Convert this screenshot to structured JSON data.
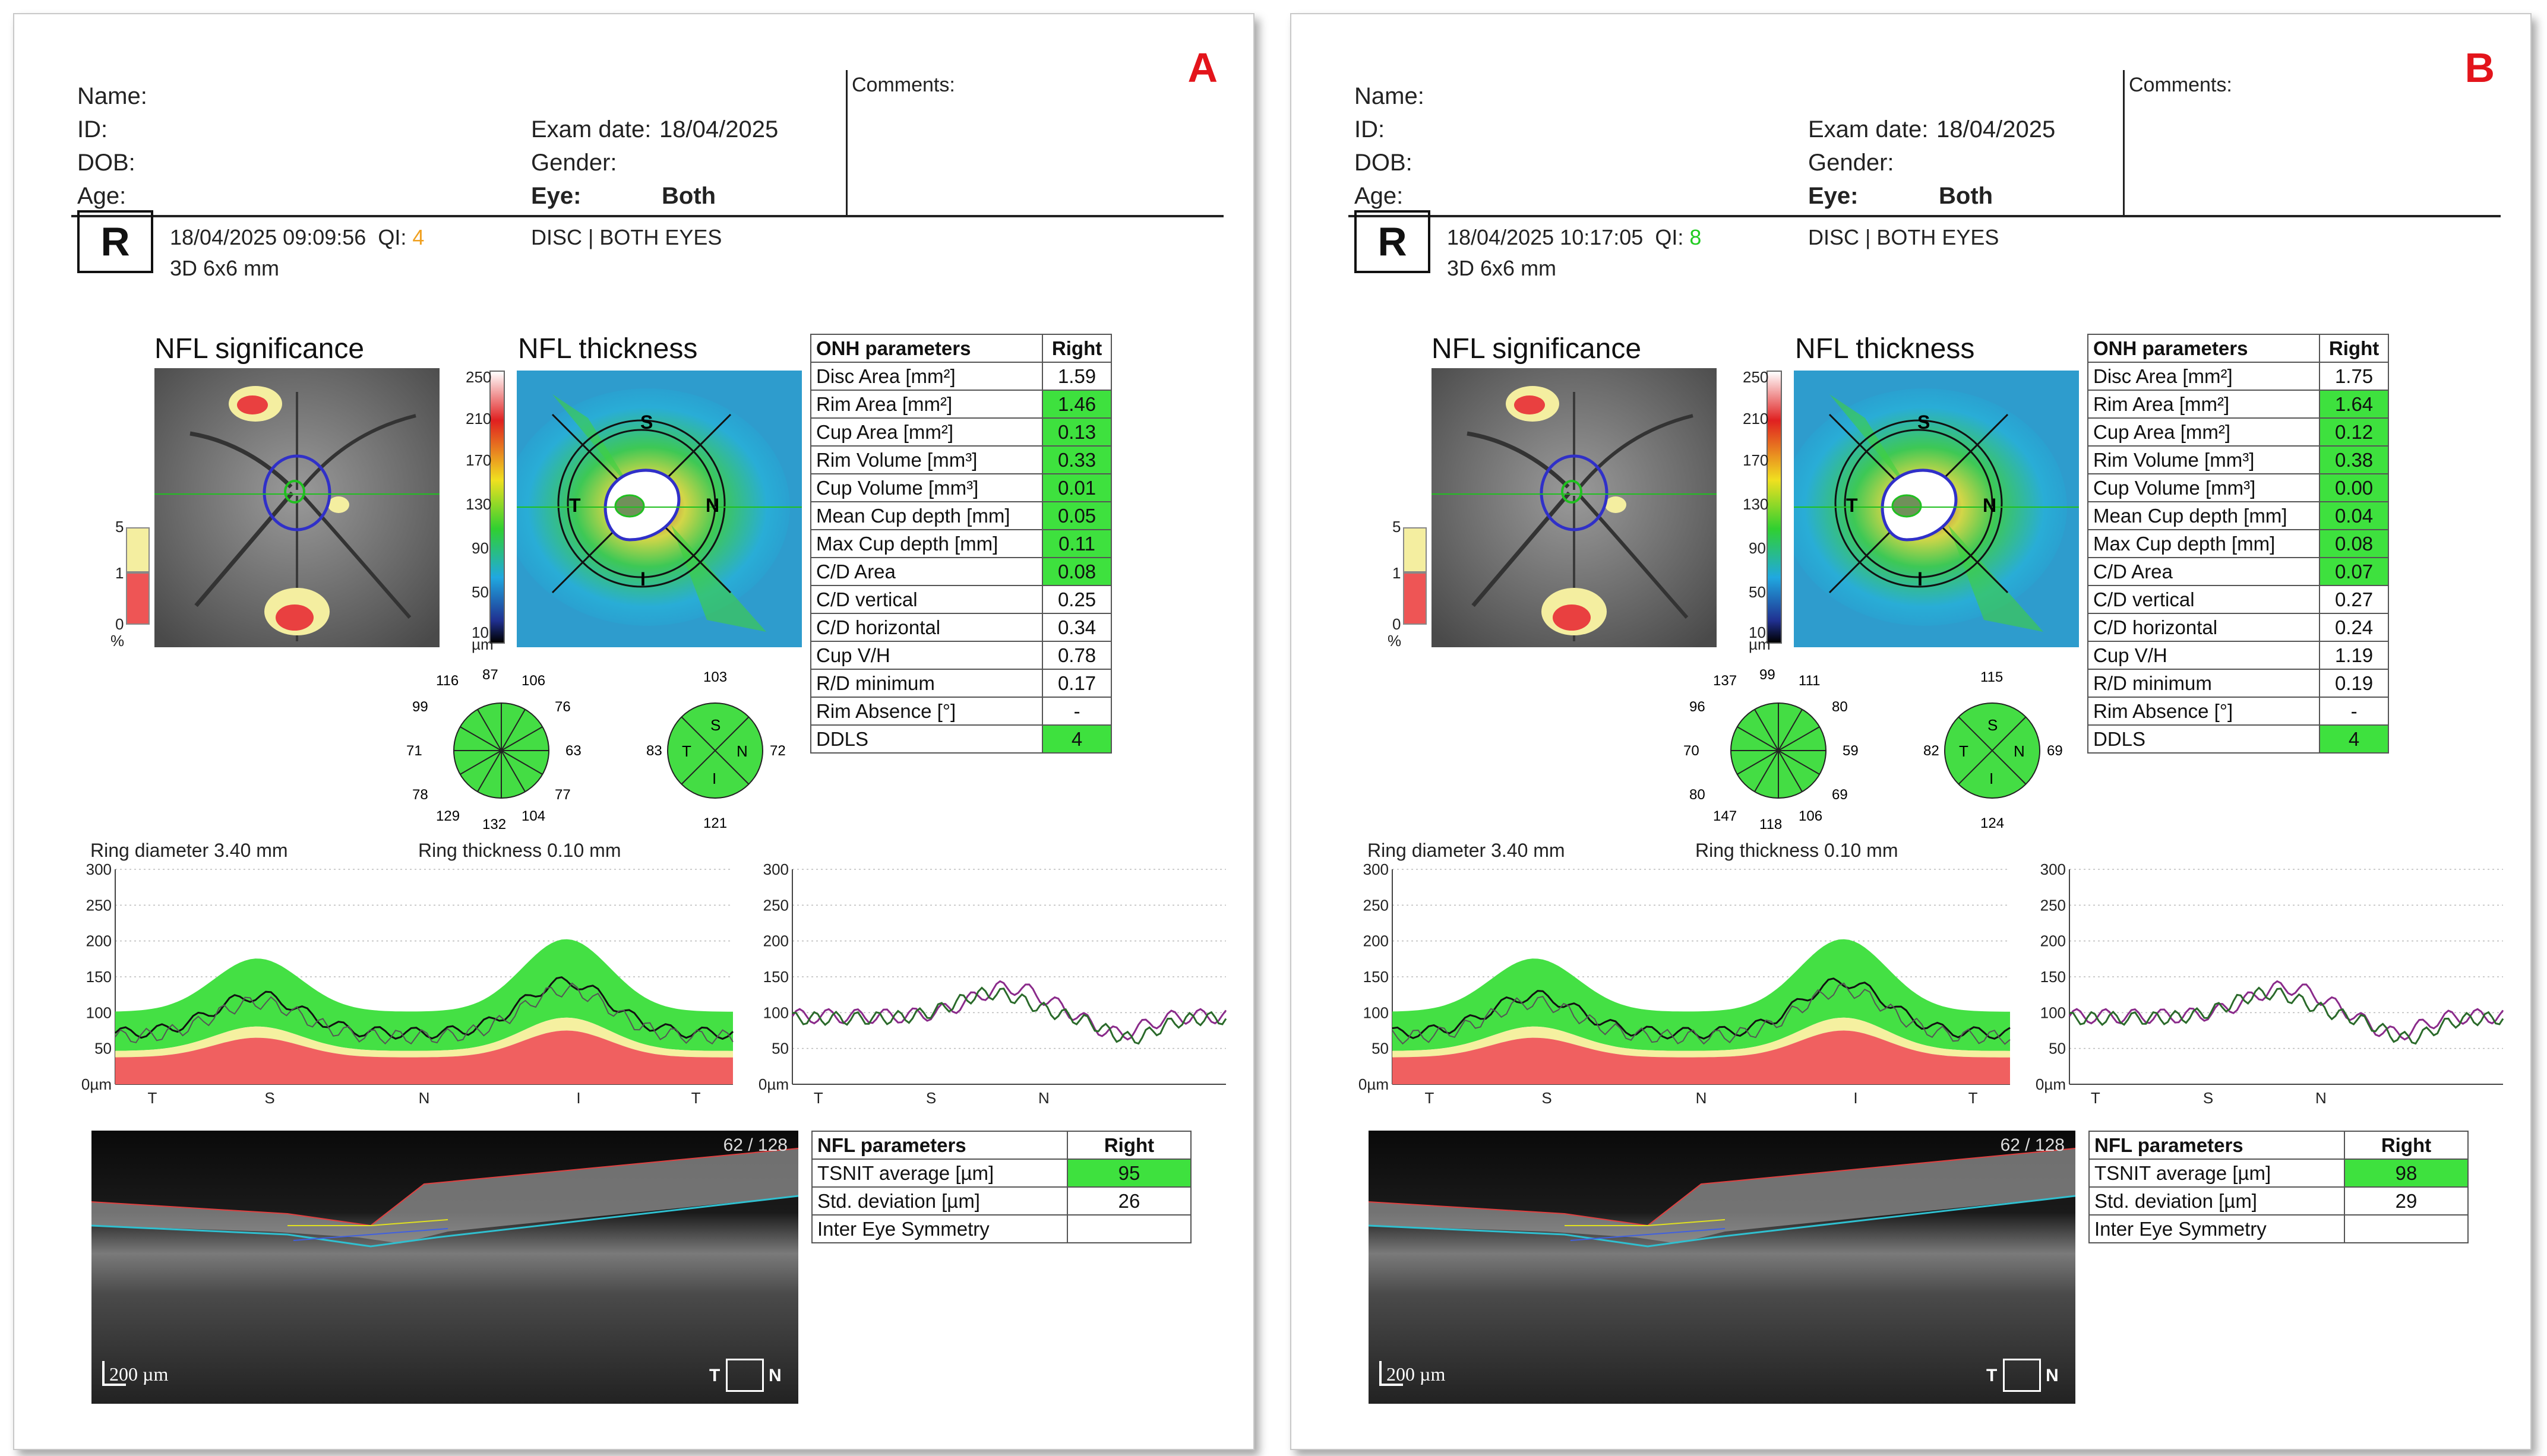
{
  "panels": [
    {
      "letter": "A",
      "header": {
        "name_label": "Name:",
        "id_label": "ID:",
        "dob_label": "DOB:",
        "age_label": "Age:",
        "exam_date_label": "Exam date:",
        "exam_date": "18/04/2025",
        "gender_label": "Gender:",
        "eye_label": "Eye:",
        "eye_value": "Both",
        "comments_label": "Comments:"
      },
      "scan": {
        "eye": "R",
        "datetime": "18/04/2025 09:09:56",
        "qi_label": "QI:",
        "qi_value": "4",
        "qi_color": "#f0a020",
        "scan_type": "3D  6x6 mm",
        "protocol": "DISC | BOTH EYES"
      },
      "sig_title": "NFL significance",
      "thick_title": "NFL thickness",
      "sig_scale": [
        "5",
        "1",
        "0",
        "%"
      ],
      "thick_scale": [
        "250",
        "210",
        "170",
        "130",
        "90",
        "50",
        "10",
        "µm"
      ],
      "quadrant_labels": [
        "S",
        "T",
        "N",
        "I"
      ],
      "onh": {
        "title": "ONH parameters",
        "col": "Right",
        "rows": [
          {
            "label": "Disc Area [mm²]",
            "value": "1.59",
            "green": false
          },
          {
            "label": "Rim Area [mm²]",
            "value": "1.46",
            "green": true
          },
          {
            "label": "Cup Area [mm²]",
            "value": "0.13",
            "green": true
          },
          {
            "label": "Rim Volume [mm³]",
            "value": "0.33",
            "green": true
          },
          {
            "label": "Cup Volume [mm³]",
            "value": "0.01",
            "green": true
          },
          {
            "label": "Mean Cup depth [mm]",
            "value": "0.05",
            "green": true
          },
          {
            "label": "Max Cup depth [mm]",
            "value": "0.11",
            "green": true
          },
          {
            "label": "C/D Area",
            "value": "0.08",
            "green": true
          },
          {
            "label": "C/D vertical",
            "value": "0.25",
            "green": false
          },
          {
            "label": "C/D horizontal",
            "value": "0.34",
            "green": false
          },
          {
            "label": "Cup V/H",
            "value": "0.78",
            "green": false
          },
          {
            "label": "R/D minimum",
            "value": "0.17",
            "green": false
          },
          {
            "label": "Rim Absence [°]",
            "value": "-",
            "green": false
          },
          {
            "label": "DDLS",
            "value": "4",
            "green": true
          }
        ]
      },
      "clock_values": {
        "top_left": "116",
        "top": "87",
        "top_right": "106",
        "left_upper": "99",
        "right_upper": "76",
        "left": "71",
        "right": "63",
        "left_lower": "78",
        "right_lower": "77",
        "bottom_left": "129",
        "bottom": "132",
        "bottom_right": "104"
      },
      "quad_values": {
        "s": "103",
        "t": "83",
        "n": "72",
        "i": "121"
      },
      "ring_diameter": "Ring diameter  3.40 mm",
      "ring_thickness": "Ring thickness  0.10 mm",
      "y_ticks": [
        "300",
        "250",
        "200",
        "150",
        "100",
        "50",
        "0µm"
      ],
      "x_ticks": [
        "T",
        "S",
        "N",
        "I",
        "T"
      ],
      "x_ticks_right": [
        "T",
        "S",
        "N"
      ],
      "nfl": {
        "title": "NFL parameters",
        "col": "Right",
        "rows": [
          {
            "label": "TSNIT average [µm]",
            "value": "95",
            "green": true
          },
          {
            "label": "Std. deviation [µm]",
            "value": "26",
            "green": false
          },
          {
            "label": "Inter Eye Symmetry",
            "value": "",
            "green": false
          }
        ]
      },
      "oct": {
        "slice": "62 / 128",
        "scale": "200 µm",
        "t": "T",
        "n": "N"
      }
    },
    {
      "letter": "B",
      "header": {
        "name_label": "Name:",
        "id_label": "ID:",
        "dob_label": "DOB:",
        "age_label": "Age:",
        "exam_date_label": "Exam date:",
        "exam_date": "18/04/2025",
        "gender_label": "Gender:",
        "eye_label": "Eye:",
        "eye_value": "Both",
        "comments_label": "Comments:"
      },
      "scan": {
        "eye": "R",
        "datetime": "18/04/2025 10:17:05",
        "qi_label": "QI:",
        "qi_value": "8",
        "qi_color": "#22cc22",
        "scan_type": "3D  6x6 mm",
        "protocol": "DISC | BOTH EYES"
      },
      "sig_title": "NFL significance",
      "thick_title": "NFL thickness",
      "sig_scale": [
        "5",
        "1",
        "0",
        "%"
      ],
      "thick_scale": [
        "250",
        "210",
        "170",
        "130",
        "90",
        "50",
        "10",
        "µm"
      ],
      "quadrant_labels": [
        "S",
        "T",
        "N",
        "I"
      ],
      "onh": {
        "title": "ONH parameters",
        "col": "Right",
        "rows": [
          {
            "label": "Disc Area [mm²]",
            "value": "1.75",
            "green": false
          },
          {
            "label": "Rim Area [mm²]",
            "value": "1.64",
            "green": true
          },
          {
            "label": "Cup Area [mm²]",
            "value": "0.12",
            "green": true
          },
          {
            "label": "Rim Volume [mm³]",
            "value": "0.38",
            "green": true
          },
          {
            "label": "Cup Volume [mm³]",
            "value": "0.00",
            "green": true
          },
          {
            "label": "Mean Cup depth [mm]",
            "value": "0.04",
            "green": true
          },
          {
            "label": "Max Cup depth [mm]",
            "value": "0.08",
            "green": true
          },
          {
            "label": "C/D Area",
            "value": "0.07",
            "green": true
          },
          {
            "label": "C/D vertical",
            "value": "0.27",
            "green": false
          },
          {
            "label": "C/D horizontal",
            "value": "0.24",
            "green": false
          },
          {
            "label": "Cup V/H",
            "value": "1.19",
            "green": false
          },
          {
            "label": "R/D minimum",
            "value": "0.19",
            "green": false
          },
          {
            "label": "Rim Absence [°]",
            "value": "-",
            "green": false
          },
          {
            "label": "DDLS",
            "value": "4",
            "green": true
          }
        ]
      },
      "clock_values": {
        "top_left": "137",
        "top": "99",
        "top_right": "111",
        "left_upper": "96",
        "right_upper": "80",
        "left": "70",
        "right": "59",
        "left_lower": "80",
        "right_lower": "69",
        "bottom_left": "147",
        "bottom": "118",
        "bottom_right": "106"
      },
      "quad_values": {
        "s": "115",
        "t": "82",
        "n": "69",
        "i": "124"
      },
      "ring_diameter": "Ring diameter  3.40 mm",
      "ring_thickness": "Ring thickness  0.10 mm",
      "y_ticks": [
        "300",
        "250",
        "200",
        "150",
        "100",
        "50",
        "0µm"
      ],
      "x_ticks": [
        "T",
        "S",
        "N",
        "I",
        "T"
      ],
      "x_ticks_right": [
        "T",
        "S",
        "N"
      ],
      "nfl": {
        "title": "NFL parameters",
        "col": "Right",
        "rows": [
          {
            "label": "TSNIT average [µm]",
            "value": "98",
            "green": true
          },
          {
            "label": "Std. deviation [µm]",
            "value": "29",
            "green": false
          },
          {
            "label": "Inter Eye Symmetry",
            "value": "",
            "green": false
          }
        ]
      },
      "oct": {
        "slice": "62 / 128",
        "scale": "200 µm",
        "t": "T",
        "n": "N"
      }
    }
  ],
  "colors": {
    "normal_green": "#3ee13e",
    "border_red": "#e3141b",
    "qi_warn": "#f0a020",
    "qi_ok": "#22cc22"
  }
}
